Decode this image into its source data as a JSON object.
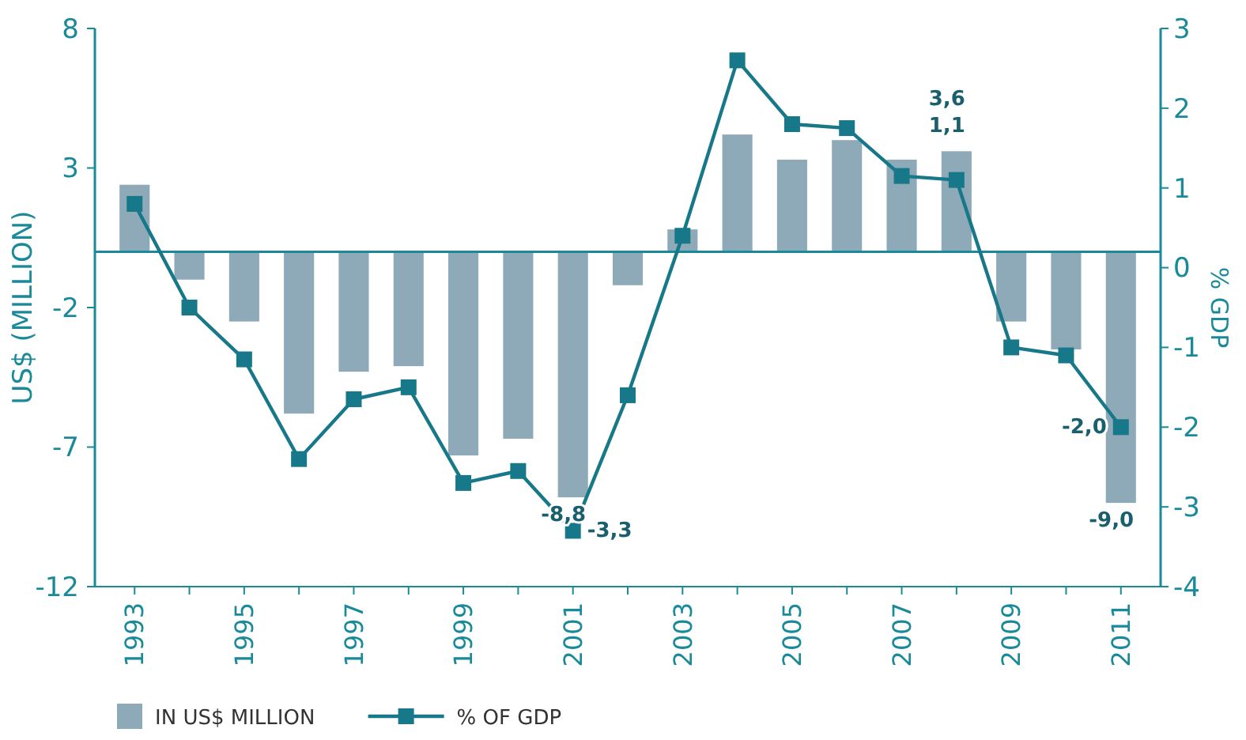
{
  "chart_data": {
    "type": "bar",
    "categories": [
      "1993",
      null,
      "1995",
      null,
      "1997",
      null,
      "1999",
      null,
      "2001",
      null,
      "2003",
      null,
      "2005",
      null,
      "2007",
      null,
      "2009",
      null,
      "2011"
    ],
    "ylabel": "US$ (MILLION)",
    "y2label": "% GDP",
    "ylim": [
      -12,
      8
    ],
    "yticks": [
      -12,
      -7,
      -2,
      3,
      8
    ],
    "y2lim": [
      -4,
      3
    ],
    "y2ticks": [
      -4,
      -3,
      -2,
      -1,
      0,
      1,
      2,
      3
    ],
    "series": [
      {
        "name": "IN US$ MILLION",
        "color": "#8eaab9",
        "values": [
          2.4,
          -1.0,
          -2.5,
          -5.8,
          -4.3,
          -4.1,
          -7.3,
          -6.7,
          -8.8,
          -1.2,
          0.8,
          4.2,
          3.3,
          4.0,
          3.3,
          3.6,
          -2.5,
          -3.5,
          -9.0
        ],
        "value_labels": [
          null,
          null,
          null,
          null,
          null,
          null,
          null,
          null,
          "-8,8",
          null,
          null,
          null,
          null,
          null,
          null,
          "3,6",
          null,
          null,
          "-9,0"
        ]
      },
      {
        "name": "% OF GDP",
        "type": "line",
        "axis": "y2",
        "color": "#17788a",
        "marker": "square",
        "values": [
          0.8,
          -0.5,
          -1.15,
          -2.4,
          -1.65,
          -1.5,
          -2.7,
          -2.55,
          -3.3,
          -1.6,
          0.4,
          2.6,
          1.8,
          1.75,
          1.15,
          1.1,
          -1.0,
          -1.1,
          -2.0
        ],
        "value_labels": [
          null,
          null,
          null,
          null,
          null,
          null,
          null,
          null,
          "-3,3",
          null,
          null,
          null,
          null,
          null,
          null,
          "1,1",
          null,
          null,
          "-2,0"
        ]
      }
    ],
    "ref_lines": [
      {
        "axis": "y",
        "value": 0,
        "color": "#1a8a9a"
      }
    ],
    "legend": "bottom left",
    "grid": false
  }
}
